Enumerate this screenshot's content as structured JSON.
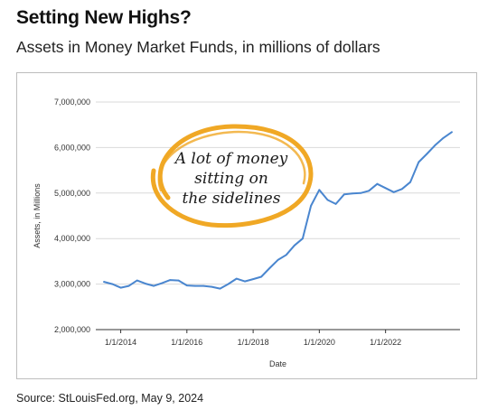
{
  "header": {
    "title": "Setting New Highs?",
    "subtitle": "Assets in Money Market Funds, in millions of dollars"
  },
  "footer": {
    "source": "Source: StLouisFed.org, May 9, 2024"
  },
  "annotation": {
    "lines": [
      "A lot of money",
      "sitting on",
      "the sidelines"
    ],
    "circle_color": "#f0a825"
  },
  "chart_data": {
    "type": "line",
    "title": "",
    "xlabel": "Date",
    "ylabel": "Assets, in Millions",
    "ylim": [
      2000000,
      7000000
    ],
    "yticks": [
      2000000,
      3000000,
      4000000,
      5000000,
      6000000,
      7000000
    ],
    "ytick_labels": [
      "2,000,000",
      "3,000,000",
      "4,000,000",
      "5,000,000",
      "6,000,000",
      "7,000,000"
    ],
    "xlim": [
      "2013-04-01",
      "2024-04-01"
    ],
    "xticks": [
      "2014-01-01",
      "2016-01-01",
      "2018-01-01",
      "2020-01-01",
      "2022-01-01"
    ],
    "xtick_labels": [
      "1/1/2014",
      "1/1/2016",
      "1/1/2018",
      "1/1/2020",
      "1/1/2022"
    ],
    "grid": true,
    "series": [
      {
        "color": "#4a86cf",
        "x": [
          "2013-07-01",
          "2013-10-01",
          "2014-01-01",
          "2014-04-01",
          "2014-07-01",
          "2014-10-01",
          "2015-01-01",
          "2015-04-01",
          "2015-07-01",
          "2015-10-01",
          "2016-01-01",
          "2016-04-01",
          "2016-07-01",
          "2016-10-01",
          "2017-01-01",
          "2017-04-01",
          "2017-07-01",
          "2017-10-01",
          "2018-01-01",
          "2018-04-01",
          "2018-07-01",
          "2018-10-01",
          "2019-01-01",
          "2019-04-01",
          "2019-07-01",
          "2019-10-01",
          "2020-01-01",
          "2020-04-01",
          "2020-07-01",
          "2020-10-01",
          "2021-01-01",
          "2021-04-01",
          "2021-07-01",
          "2021-10-01",
          "2022-01-01",
          "2022-04-01",
          "2022-07-01",
          "2022-10-01",
          "2023-01-01",
          "2023-04-01",
          "2023-07-01",
          "2023-10-01",
          "2024-01-01"
        ],
        "values": [
          3050000,
          3000000,
          2920000,
          2960000,
          3080000,
          3010000,
          2960000,
          3020000,
          3090000,
          3080000,
          2970000,
          2960000,
          2960000,
          2940000,
          2900000,
          3000000,
          3120000,
          3060000,
          3110000,
          3160000,
          3350000,
          3530000,
          3640000,
          3850000,
          4000000,
          4720000,
          5070000,
          4850000,
          4760000,
          4970000,
          4990000,
          5000000,
          5050000,
          5200000,
          5110000,
          5020000,
          5090000,
          5240000,
          5680000,
          5860000,
          6050000,
          6210000,
          6340000
        ]
      }
    ]
  }
}
